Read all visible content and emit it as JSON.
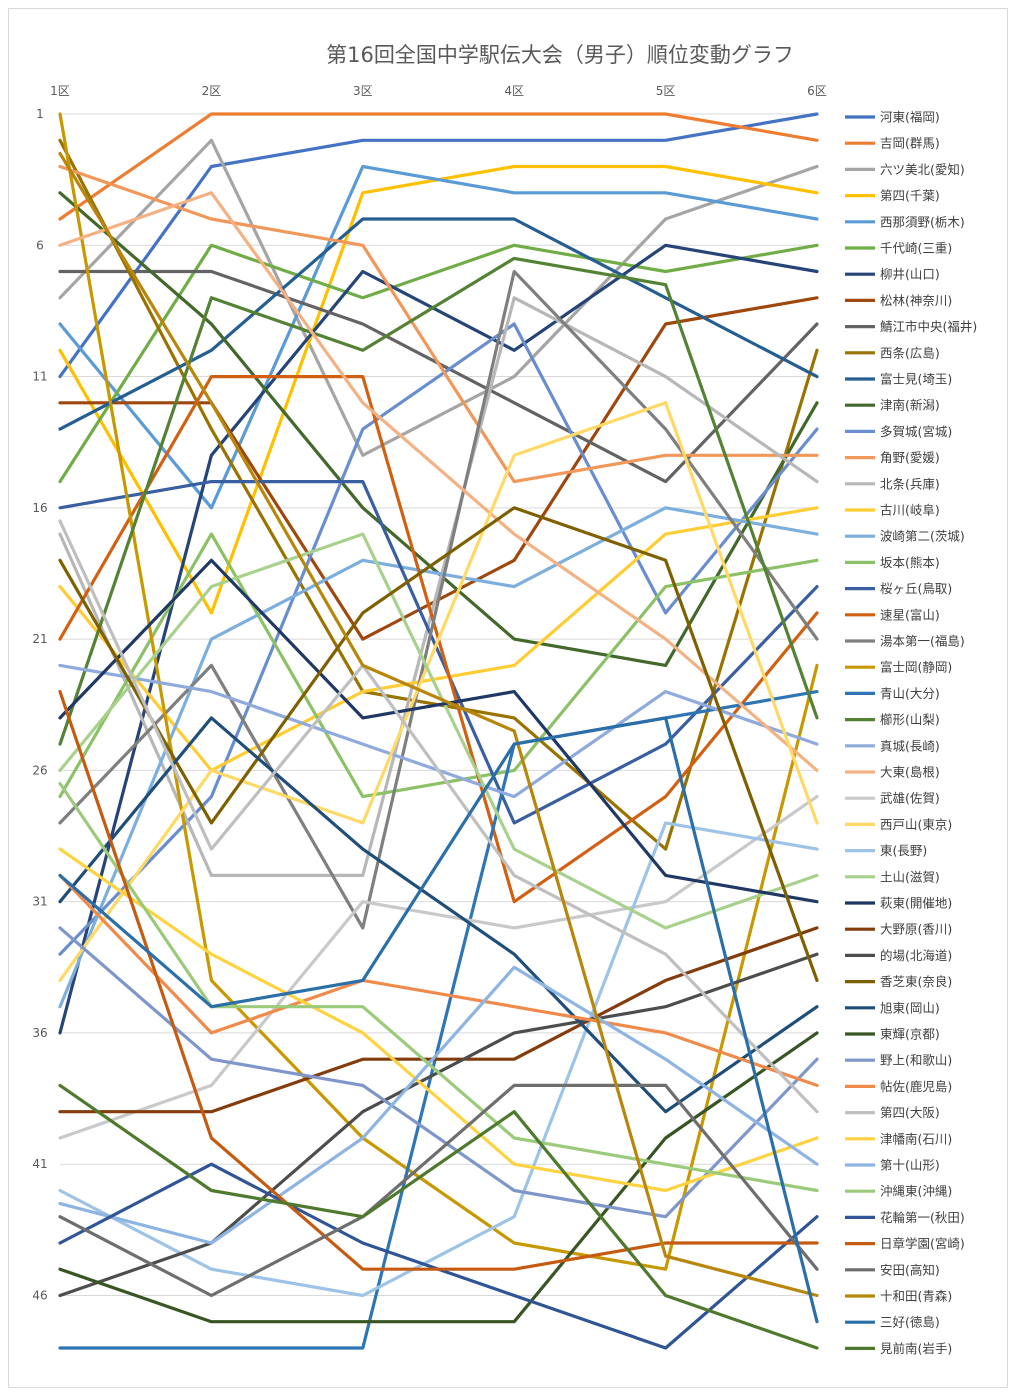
{
  "chart_data": {
    "type": "line",
    "title": "第16回全国中学駅伝大会（男子）順位変動グラフ",
    "x": [
      "1区",
      "2区",
      "3区",
      "4区",
      "5区",
      "6区"
    ],
    "y_ticks": [
      1,
      6,
      11,
      16,
      21,
      26,
      31,
      36,
      41,
      46
    ],
    "ylim": [
      1,
      48
    ],
    "y_reversed": true,
    "grid": "horizontal",
    "legend_position": "right",
    "series": [
      {
        "name": "河東(福岡)",
        "color": "#4472C4",
        "values": [
          11,
          3,
          2,
          2,
          2,
          1
        ]
      },
      {
        "name": "吉岡(群馬)",
        "color": "#ED7D31",
        "values": [
          5,
          1,
          1,
          1,
          1,
          2
        ]
      },
      {
        "name": "六ツ美北(愛知)",
        "color": "#A5A5A5",
        "values": [
          8,
          2,
          14,
          11,
          5,
          3
        ]
      },
      {
        "name": "第四(千葉)",
        "color": "#FFC000",
        "values": [
          10,
          20,
          4,
          3,
          3,
          4
        ]
      },
      {
        "name": "西那須野(栃木)",
        "color": "#5B9BD5",
        "values": [
          9,
          16,
          3,
          4,
          4,
          5
        ]
      },
      {
        "name": "千代崎(三重)",
        "color": "#70AD47",
        "values": [
          15,
          6,
          8,
          6,
          7,
          6
        ]
      },
      {
        "name": "柳井(山口)",
        "color": "#264478",
        "values": [
          36,
          14,
          7,
          10,
          6,
          7
        ]
      },
      {
        "name": "松林(神奈川)",
        "color": "#9E480E",
        "values": [
          12,
          12,
          21,
          18,
          9,
          8
        ]
      },
      {
        "name": "鯖江市中央(福井)",
        "color": "#636363",
        "values": [
          7,
          7,
          9,
          12,
          15,
          9
        ]
      },
      {
        "name": "西条(広島)",
        "color": "#997300",
        "values": [
          2,
          13,
          23,
          24,
          29,
          10
        ]
      },
      {
        "name": "富士見(埼玉)",
        "color": "#255E91",
        "values": [
          13,
          10,
          5,
          5,
          8,
          11
        ]
      },
      {
        "name": "津南(新潟)",
        "color": "#43682B",
        "values": [
          4,
          9,
          16,
          21,
          22,
          12
        ]
      },
      {
        "name": "多賀城(宮城)",
        "color": "#698ED0",
        "values": [
          33,
          27,
          13,
          9,
          20,
          13
        ]
      },
      {
        "name": "角野(愛媛)",
        "color": "#F1975A",
        "values": [
          3,
          5,
          6,
          15,
          14,
          14
        ]
      },
      {
        "name": "北条(兵庫)",
        "color": "#B7B7B7",
        "values": [
          17,
          30,
          30,
          8,
          11,
          15
        ]
      },
      {
        "name": "古川(岐阜)",
        "color": "#FFCD33",
        "values": [
          19,
          26,
          23,
          22,
          17,
          16
        ]
      },
      {
        "name": "波崎第二(茨城)",
        "color": "#7CAFDD",
        "values": [
          35,
          21,
          18,
          19,
          16,
          17
        ]
      },
      {
        "name": "坂本(熊本)",
        "color": "#8CC168",
        "values": [
          27,
          17,
          27,
          26,
          19,
          18
        ]
      },
      {
        "name": "桜ヶ丘(鳥取)",
        "color": "#3A5FA0",
        "values": [
          16,
          15,
          15,
          28,
          25,
          19
        ]
      },
      {
        "name": "速星(富山)",
        "color": "#D26012",
        "values": [
          21,
          11,
          11,
          31,
          27,
          20
        ]
      },
      {
        "name": "湯本第一(福島)",
        "color": "#7F7F7F",
        "values": [
          28,
          22,
          32,
          7,
          13,
          21
        ]
      },
      {
        "name": "富士岡(静岡)",
        "color": "#C89800",
        "values": [
          1,
          34,
          40,
          44,
          45,
          22
        ]
      },
      {
        "name": "青山(大分)",
        "color": "#2E75B6",
        "values": [
          48,
          48,
          48,
          25,
          24,
          23
        ]
      },
      {
        "name": "櫛形(山梨)",
        "color": "#548235",
        "values": [
          25,
          8,
          10,
          6.5,
          7.5,
          24
        ]
      },
      {
        "name": "真城(長崎)",
        "color": "#8FAADC",
        "values": [
          22,
          23,
          25,
          27,
          23,
          25
        ]
      },
      {
        "name": "大東(島根)",
        "color": "#F4B183",
        "values": [
          6,
          4,
          12,
          17,
          21,
          26
        ]
      },
      {
        "name": "武雄(佐賀)",
        "color": "#C9C9C9",
        "values": [
          40,
          38,
          31,
          32,
          31,
          27
        ]
      },
      {
        "name": "西戸山(東京)",
        "color": "#FFD966",
        "values": [
          34,
          26,
          28,
          14,
          12,
          28
        ]
      },
      {
        "name": "東(長野)",
        "color": "#9DC3E6",
        "values": [
          42,
          45,
          46,
          43,
          28,
          29
        ]
      },
      {
        "name": "土山(滋賀)",
        "color": "#A9D18E",
        "values": [
          26,
          19,
          17,
          29,
          32,
          30
        ]
      },
      {
        "name": "萩東(開催地)",
        "color": "#203864",
        "values": [
          24,
          18,
          24,
          23,
          30,
          31
        ]
      },
      {
        "name": "大野原(香川)",
        "color": "#843C0C",
        "values": [
          39,
          39,
          37,
          37,
          34,
          32
        ]
      },
      {
        "name": "的場(北海道)",
        "color": "#4D4D4D",
        "values": [
          46,
          44,
          39,
          36,
          35,
          33
        ]
      },
      {
        "name": "香芝東(奈良)",
        "color": "#7F6000",
        "values": [
          18,
          28,
          20,
          16,
          18,
          34
        ]
      },
      {
        "name": "旭東(岡山)",
        "color": "#1F4E79",
        "values": [
          31,
          24,
          29,
          33,
          39,
          35
        ]
      },
      {
        "name": "東輝(京都)",
        "color": "#375623",
        "values": [
          45,
          47,
          47,
          47,
          40,
          36
        ]
      },
      {
        "name": "野上(和歌山)",
        "color": "#7E96C9",
        "values": [
          32,
          37,
          38,
          42,
          43,
          37
        ]
      },
      {
        "name": "帖佐(鹿児島)",
        "color": "#F08A4B",
        "values": [
          30,
          36,
          34,
          35,
          36,
          38
        ]
      },
      {
        "name": "第四(大阪)",
        "color": "#BFBFBF",
        "values": [
          16.5,
          29,
          22,
          30,
          33,
          39
        ]
      },
      {
        "name": "津幡南(石川)",
        "color": "#FFD23F",
        "values": [
          29,
          33,
          36,
          41,
          42,
          40
        ]
      },
      {
        "name": "第十(山形)",
        "color": "#8DB4E2",
        "values": [
          42.5,
          44,
          40,
          33.5,
          37,
          41
        ]
      },
      {
        "name": "沖縄東(沖縄)",
        "color": "#9BCB7A",
        "values": [
          26.5,
          35,
          35,
          40,
          41,
          42
        ]
      },
      {
        "name": "花輪第一(秋田)",
        "color": "#2F5597",
        "values": [
          44,
          41,
          44,
          46,
          48,
          43
        ]
      },
      {
        "name": "日章学園(宮崎)",
        "color": "#C55A11",
        "values": [
          23,
          40,
          45,
          45,
          44,
          44
        ]
      },
      {
        "name": "安田(高知)",
        "color": "#6E6E6E",
        "values": [
          43,
          46,
          43,
          38,
          38,
          45
        ]
      },
      {
        "name": "十和田(青森)",
        "color": "#B8860B",
        "values": [
          2.5,
          12,
          22,
          24.5,
          44.5,
          46
        ]
      },
      {
        "name": "三好(徳島)",
        "color": "#2A6FA8",
        "values": [
          30,
          35,
          34,
          25,
          24,
          47
        ]
      },
      {
        "name": "見前南(岩手)",
        "color": "#4F7A2E",
        "values": [
          38,
          42,
          43,
          39,
          46,
          48
        ]
      }
    ]
  }
}
